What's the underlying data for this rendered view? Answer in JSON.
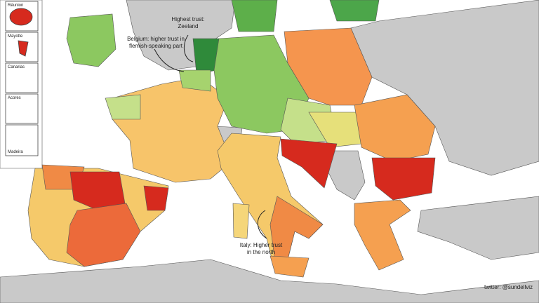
{
  "insets": [
    "Réunion",
    "Mayotte",
    "Canarias",
    "Acores",
    "Madeira"
  ],
  "annotations": {
    "zeeland": [
      "Highest trust:",
      "Zeeland"
    ],
    "belgium": [
      "Belgium: higher trust in",
      "flemish-speaking part"
    ],
    "italy": [
      "Italy: Higher trust",
      "in the north"
    ]
  },
  "credit": "twitter: @sundellviz"
}
